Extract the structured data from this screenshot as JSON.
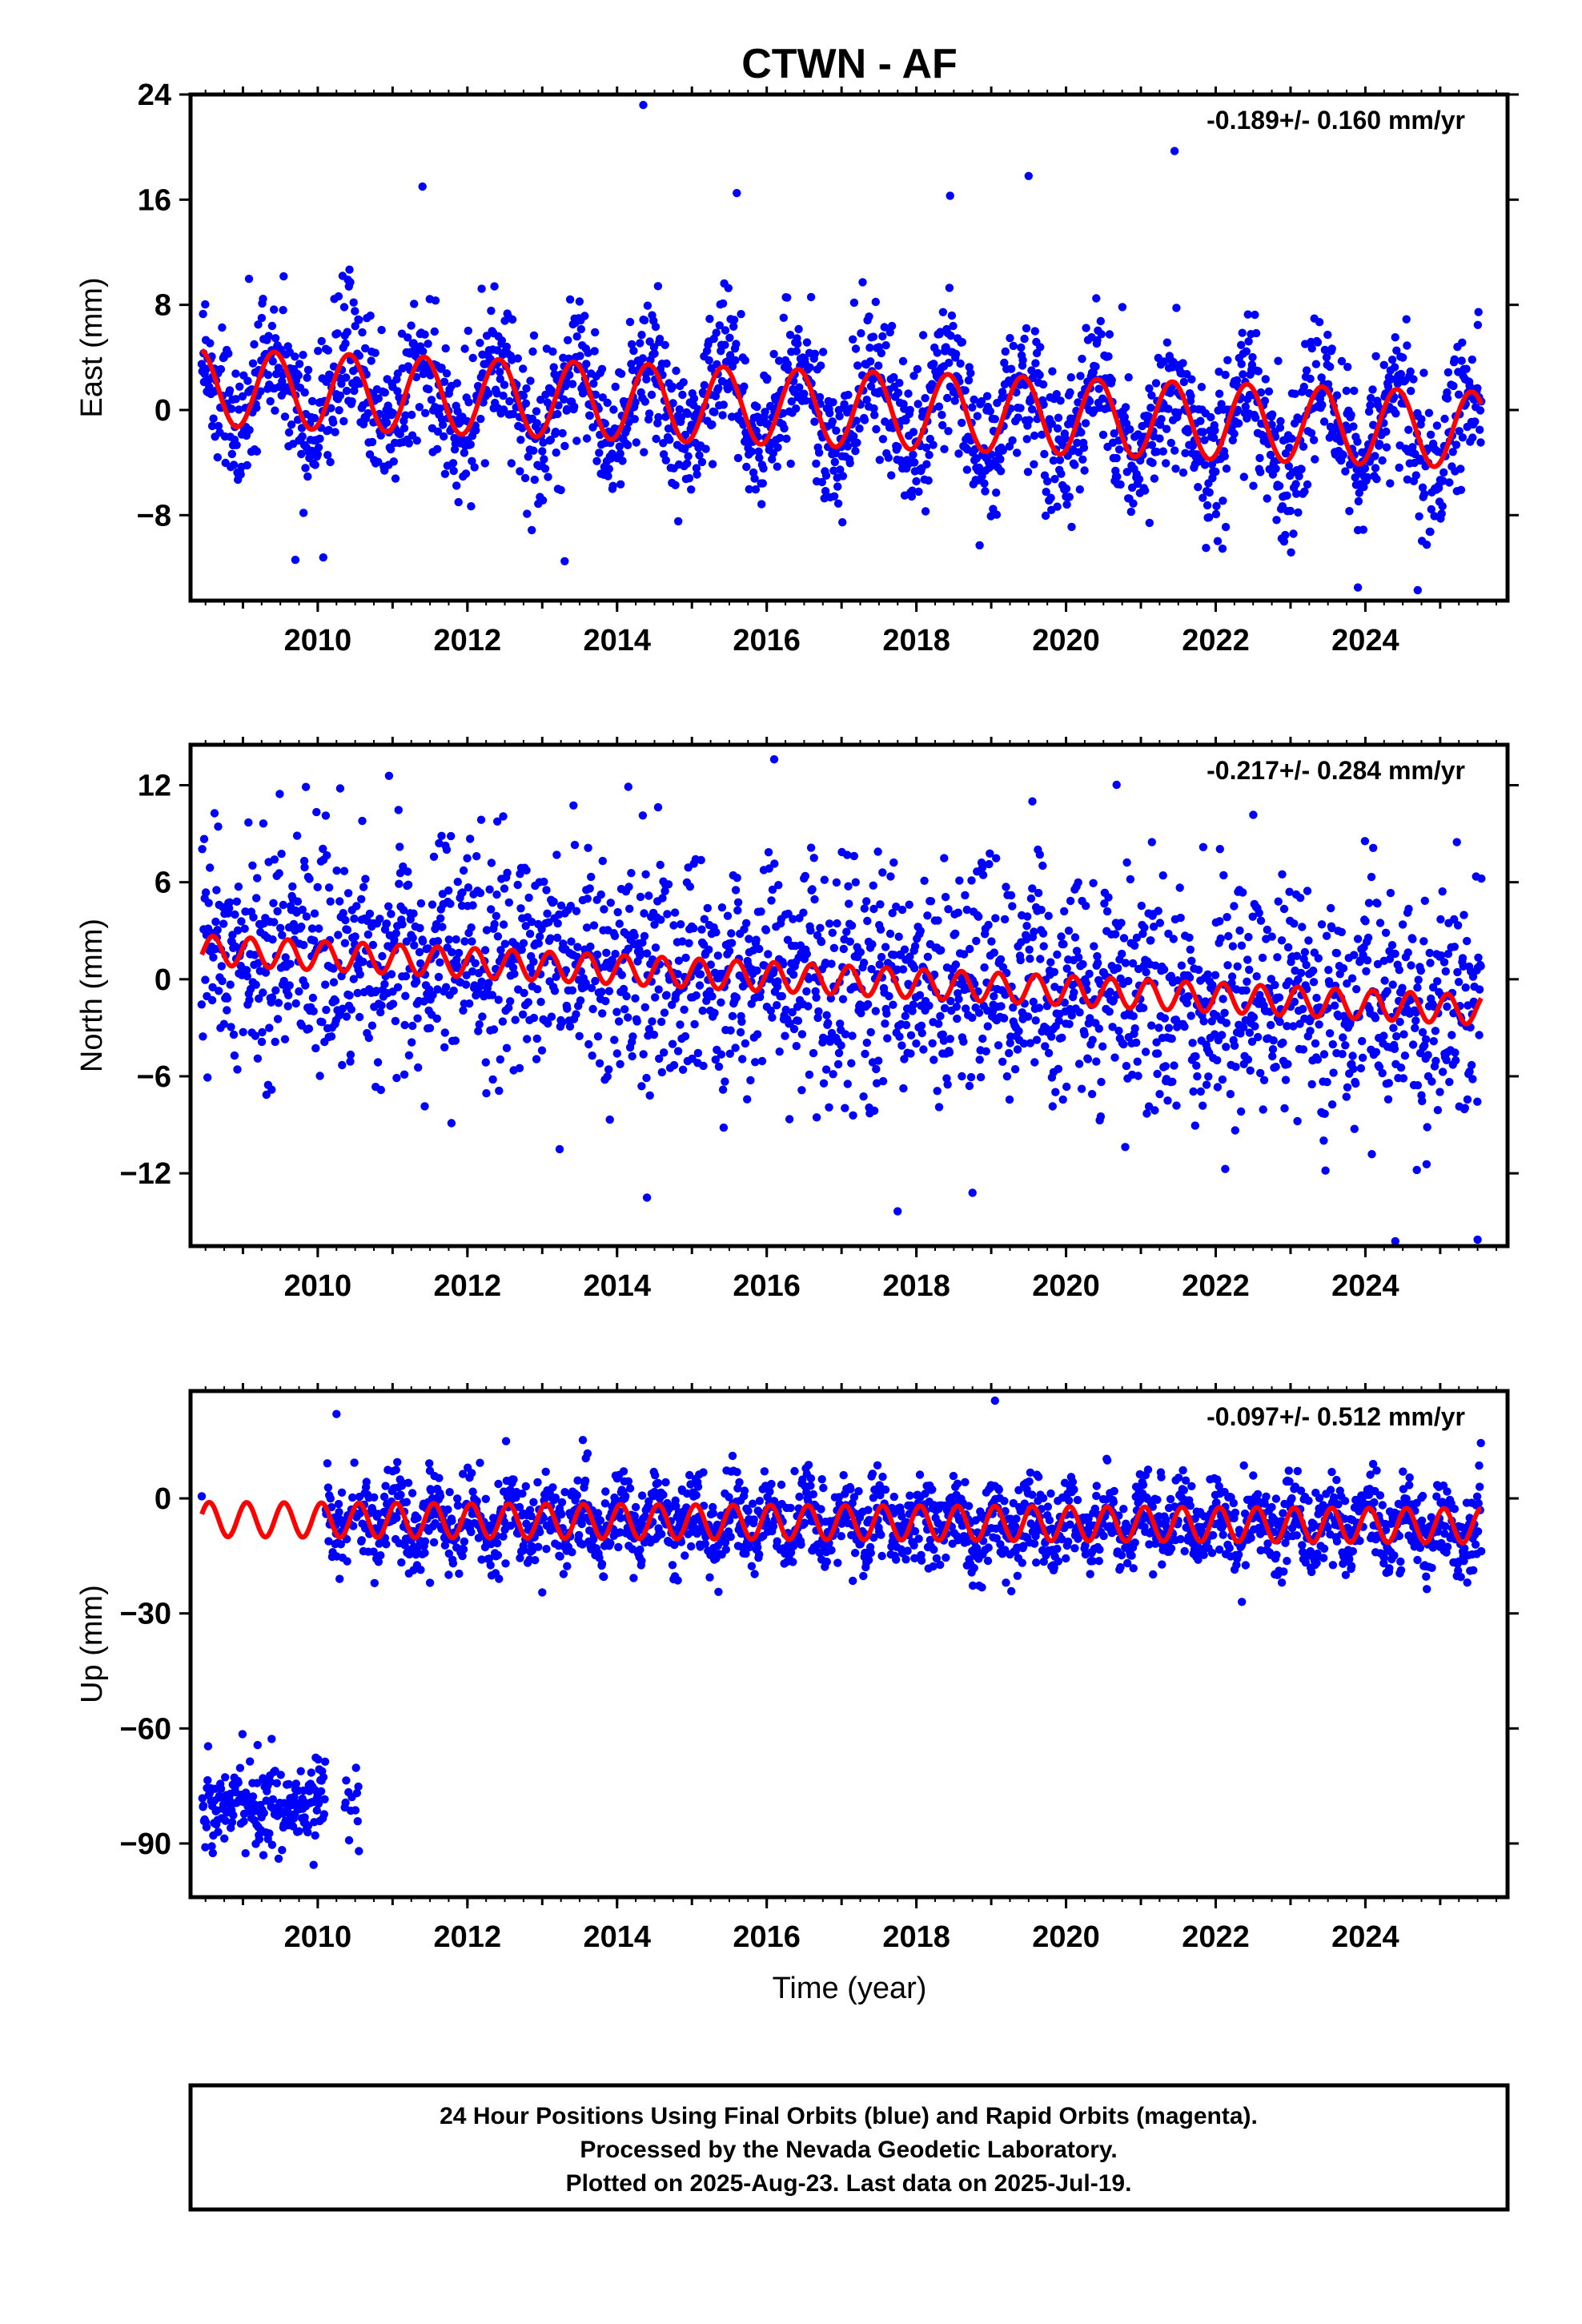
{
  "title": "CTWN - AF",
  "xlabel": "Time (year)",
  "colors": {
    "data": "#0000ff",
    "model": "#ff0000",
    "frame": "#000000"
  },
  "caption": {
    "lines": [
      "24 Hour Positions Using Final Orbits (blue) and Rapid Orbits (magenta).",
      "Processed by the Nevada Geodetic Laboratory.",
      "Plotted on 2025-Aug-23. Last data on 2025-Jul-19."
    ]
  },
  "chart_data": [
    {
      "type": "scatter",
      "component": "east",
      "ylabel": "East (mm)",
      "rate": "-0.189+/- 0.160 mm/yr",
      "xlim": [
        2008.3,
        2025.9
      ],
      "ylim": [
        -14.5,
        24.0
      ],
      "yticks": [
        24,
        16,
        8,
        0,
        -8
      ],
      "xticks": [
        2010,
        2012,
        2014,
        2016,
        2018,
        2020,
        2022,
        2024
      ],
      "data_start": 2008.45,
      "data_end": 2025.55,
      "model": {
        "offset": 1.7,
        "slope": -0.189,
        "ref_year": 2008.45,
        "amplitude": 2.9,
        "period_years": 1.0,
        "phase_peak": 0.42
      },
      "scatter_sigma": 2.8,
      "outliers": [
        [
          2014.35,
          23.2
        ],
        [
          2021.45,
          19.7
        ],
        [
          2019.5,
          17.8
        ],
        [
          2011.4,
          17.0
        ],
        [
          2015.6,
          16.5
        ],
        [
          2018.45,
          16.3
        ],
        [
          2009.7,
          -11.4
        ],
        [
          2013.3,
          -11.5
        ],
        [
          2023.9,
          -13.5
        ],
        [
          2024.7,
          -13.7
        ]
      ]
    },
    {
      "type": "scatter",
      "component": "north",
      "ylabel": "North (mm)",
      "rate": "-0.217+/- 0.284 mm/yr",
      "xlim": [
        2008.3,
        2025.9
      ],
      "ylim": [
        -16.5,
        14.5
      ],
      "yticks": [
        12,
        6,
        0,
        -6,
        -12
      ],
      "xticks": [
        2010,
        2012,
        2014,
        2016,
        2018,
        2020,
        2022,
        2024
      ],
      "data_start": 2008.45,
      "data_end": 2025.55,
      "model": {
        "offset": 1.8,
        "slope": -0.217,
        "ref_year": 2008.45,
        "amplitude": 0.9,
        "period_years": 0.5,
        "phase_peak": 0.1
      },
      "scatter_sigma": 3.6,
      "outliers": [
        [
          2016.1,
          13.6
        ],
        [
          2010.3,
          11.8
        ],
        [
          2014.15,
          11.9
        ],
        [
          2019.55,
          11.0
        ],
        [
          2014.4,
          -13.5
        ],
        [
          2018.75,
          -13.2
        ],
        [
          2024.4,
          -16.2
        ],
        [
          2025.5,
          -16.1
        ]
      ]
    },
    {
      "type": "scatter",
      "component": "up",
      "ylabel": "Up (mm)",
      "rate": "-0.097+/- 0.512 mm/yr",
      "xlim": [
        2008.3,
        2025.9
      ],
      "ylim": [
        -104,
        28
      ],
      "yticks": [
        0,
        -30,
        -60,
        -90
      ],
      "xticks": [
        2010,
        2012,
        2014,
        2016,
        2018,
        2020,
        2022,
        2024
      ],
      "data_start": 2008.45,
      "data_end": 2025.55,
      "offset_segment": {
        "start": 2008.45,
        "end": 2010.55,
        "mean": -80.0,
        "sigma": 6.0
      },
      "model": {
        "offset": -5.5,
        "slope": -0.097,
        "ref_year": 2008.45,
        "amplitude": 4.5,
        "period_years": 0.5,
        "phase_peak": 0.05
      },
      "scatter_sigma": 5.5,
      "outliers": [
        [
          2019.05,
          25.5
        ],
        [
          2010.25,
          22.0
        ],
        [
          2022.35,
          -27.0
        ],
        [
          2013.0,
          -24.5
        ],
        [
          2011.5,
          -22.0
        ],
        [
          2017.15,
          -21.5
        ]
      ]
    }
  ]
}
